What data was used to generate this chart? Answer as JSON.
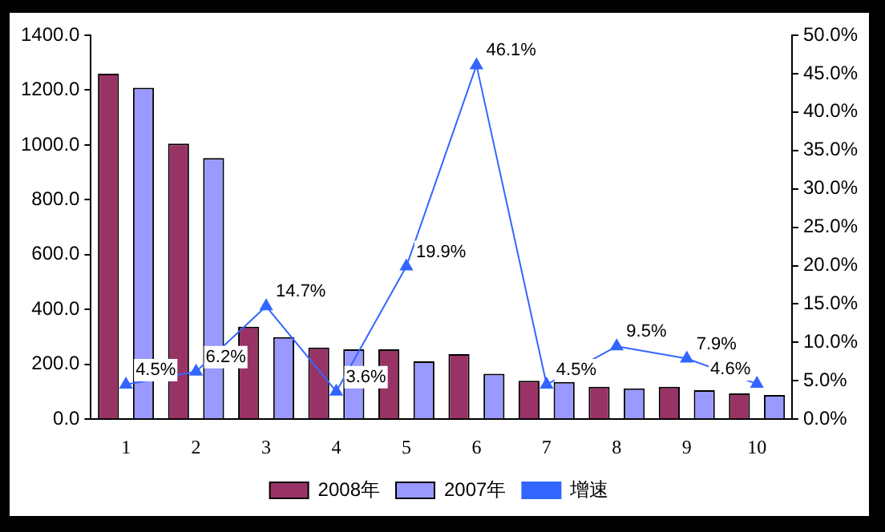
{
  "chart_data": {
    "type": "bar",
    "categories": [
      "1",
      "2",
      "3",
      "4",
      "5",
      "6",
      "7",
      "8",
      "9",
      "10"
    ],
    "series": [
      {
        "name": "2008年",
        "color": "#993366",
        "values": [
          1260,
          1005,
          337,
          261,
          255,
          237,
          140,
          118,
          118,
          94
        ]
      },
      {
        "name": "2007年",
        "color": "#9999ff",
        "values": [
          1209,
          952,
          299,
          255,
          211,
          166,
          136,
          112,
          106,
          88
        ]
      },
      {
        "name": "增速",
        "type": "line",
        "axis": "y2",
        "color": "#3366ff",
        "marker": "triangle",
        "values": [
          4.5,
          6.2,
          14.7,
          3.6,
          19.9,
          46.1,
          4.5,
          9.5,
          7.9,
          4.6
        ],
        "value_labels": [
          "4.5%",
          "6.2%",
          "14.7%",
          "3.6%",
          "19.9%",
          "46.1%",
          "4.5%",
          "9.5%",
          "7.9%",
          "4.6%"
        ]
      }
    ],
    "ylim": [
      0,
      1400
    ],
    "yticks": [
      {
        "value": 0,
        "label": "0.0"
      },
      {
        "value": 200,
        "label": "200.0"
      },
      {
        "value": 400,
        "label": "400.0"
      },
      {
        "value": 600,
        "label": "600.0"
      },
      {
        "value": 800,
        "label": "800.0"
      },
      {
        "value": 1000,
        "label": "1000.0"
      },
      {
        "value": 1200,
        "label": "1200.0"
      },
      {
        "value": 1400,
        "label": "1400.0"
      }
    ],
    "y2lim": [
      0,
      50
    ],
    "y2ticks": [
      {
        "value": 0,
        "label": "0.0%"
      },
      {
        "value": 5,
        "label": "5.0%"
      },
      {
        "value": 10,
        "label": "10.0%"
      },
      {
        "value": 15,
        "label": "15.0%"
      },
      {
        "value": 20,
        "label": "20.0%"
      },
      {
        "value": 25,
        "label": "25.0%"
      },
      {
        "value": 30,
        "label": "30.0%"
      },
      {
        "value": 35,
        "label": "35.0%"
      },
      {
        "value": 40,
        "label": "40.0%"
      },
      {
        "value": 45,
        "label": "45.0%"
      },
      {
        "value": 50,
        "label": "50.0%"
      }
    ],
    "grid": false,
    "legend": "bottom"
  }
}
